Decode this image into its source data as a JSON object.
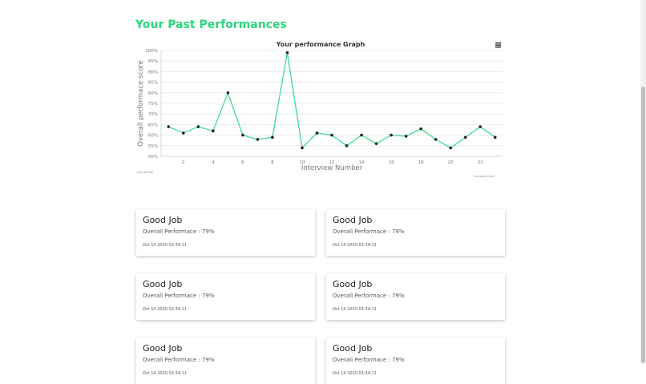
{
  "page_title": "Your Past Performances",
  "chart_data": {
    "type": "line",
    "title": "Your performance Graph",
    "xlabel": "Interview Number",
    "ylabel": "Overall performace score",
    "x": [
      1,
      2,
      3,
      4,
      5,
      6,
      7,
      8,
      9,
      10,
      11,
      12,
      13,
      14,
      15,
      16,
      17,
      18,
      19,
      20,
      21,
      22,
      23
    ],
    "values": [
      64,
      61,
      64,
      62,
      80,
      60,
      58,
      59,
      99,
      54,
      61,
      60,
      55,
      60,
      56,
      60,
      59.5,
      63,
      58,
      54,
      59,
      64,
      59
    ],
    "ylim": [
      50,
      100
    ],
    "xlim": [
      0.5,
      23.5
    ],
    "yticks": [
      "50%",
      "55%",
      "60%",
      "65%",
      "70%",
      "75%",
      "80%",
      "85%",
      "90%",
      "95%",
      "100%"
    ],
    "xticks": [
      "2",
      "4",
      "6",
      "8",
      "10",
      "12",
      "14",
      "16",
      "18",
      "20",
      "22"
    ],
    "grid": true,
    "line_color": "#3ddc91",
    "marker_color": "#222222",
    "watermark_left": "Trial Version",
    "watermark_right": "CanvasJS.Com",
    "menu_icon": "hamburger-icon"
  },
  "cards": [
    {
      "title": "Good Job",
      "perf": "Overall Performace : 79%",
      "date": "Oct 14 2020 03:34:11"
    },
    {
      "title": "Good Job",
      "perf": "Overall Performace : 79%",
      "date": "Oct 14 2020 03:34:11"
    },
    {
      "title": "Good Job",
      "perf": "Overall Performace : 79%",
      "date": "Oct 14 2020 03:34:11"
    },
    {
      "title": "Good Job",
      "perf": "Overall Performace : 79%",
      "date": "Oct 14 2020 03:34:11"
    },
    {
      "title": "Good Job",
      "perf": "Overall Performace : 79%",
      "date": "Oct 14 2020 03:34:11"
    },
    {
      "title": "Good Job",
      "perf": "Overall Performace : 79%",
      "date": "Oct 14 2020 03:34:11"
    }
  ]
}
